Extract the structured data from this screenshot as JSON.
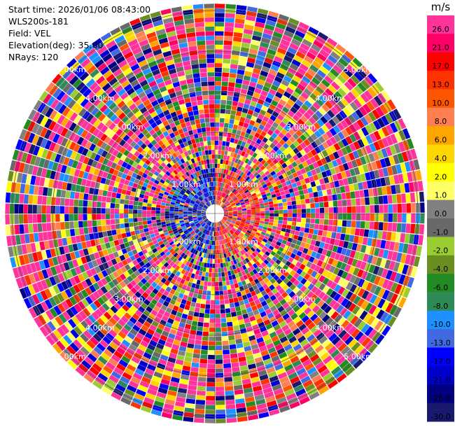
{
  "info": {
    "start_time": "Start time: 2026/01/06 08:43:00",
    "instrument": "WLS200s-181",
    "field": "Field: VEL",
    "elevation": "Elevation(deg): 35.00",
    "nrays": "NRays: 120"
  },
  "colorbar": {
    "unit": "m/s",
    "levels": [
      {
        "label": "26.0",
        "color": "#ff3399"
      },
      {
        "label": "21.0",
        "color": "#ff0066"
      },
      {
        "label": "17.0",
        "color": "#ff0000"
      },
      {
        "label": "13.0",
        "color": "#ff3300"
      },
      {
        "label": "10.0",
        "color": "#ff5500"
      },
      {
        "label": "8.0",
        "color": "#ff7f50"
      },
      {
        "label": "6.0",
        "color": "#ffa500"
      },
      {
        "label": "4.0",
        "color": "#ffd700"
      },
      {
        "label": "2.0",
        "color": "#ffff00"
      },
      {
        "label": "1.0",
        "color": "#ffff66"
      },
      {
        "label": "0.0",
        "color": "#808080"
      },
      {
        "label": "-1.0",
        "color": "#696969"
      },
      {
        "label": "-2.0",
        "color": "#9acd32"
      },
      {
        "label": "-4.0",
        "color": "#6b8e23"
      },
      {
        "label": "-6.0",
        "color": "#228b22"
      },
      {
        "label": "-8.0",
        "color": "#2e8b57"
      },
      {
        "label": "-10.0",
        "color": "#1e90ff"
      },
      {
        "label": "-13.0",
        "color": "#4169e1"
      },
      {
        "label": "-17.0",
        "color": "#0000ff"
      },
      {
        "label": "-21.0",
        "color": "#0000cd"
      },
      {
        "label": "-26.0",
        "color": "#000080"
      },
      {
        "label": "-30.0",
        "color": "#191970"
      }
    ]
  },
  "chart_data": {
    "type": "heatmap",
    "plot": "PPI polar velocity",
    "field": "VEL",
    "units": "m/s",
    "elevation_deg": 35.0,
    "n_rays": 120,
    "range_rings_km": [
      1.0,
      2.0,
      3.0,
      4.0,
      5.0
    ],
    "ring_labels": [
      "1.00km",
      "2.00km",
      "3.00km",
      "4.00km",
      "5.00km"
    ],
    "max_range_km": 5.0,
    "colorbar_min": -30.0,
    "colorbar_max": 26.0,
    "note_pattern": "near center: negative velocities west half, positive east half; outer rings noisy across full scale"
  }
}
